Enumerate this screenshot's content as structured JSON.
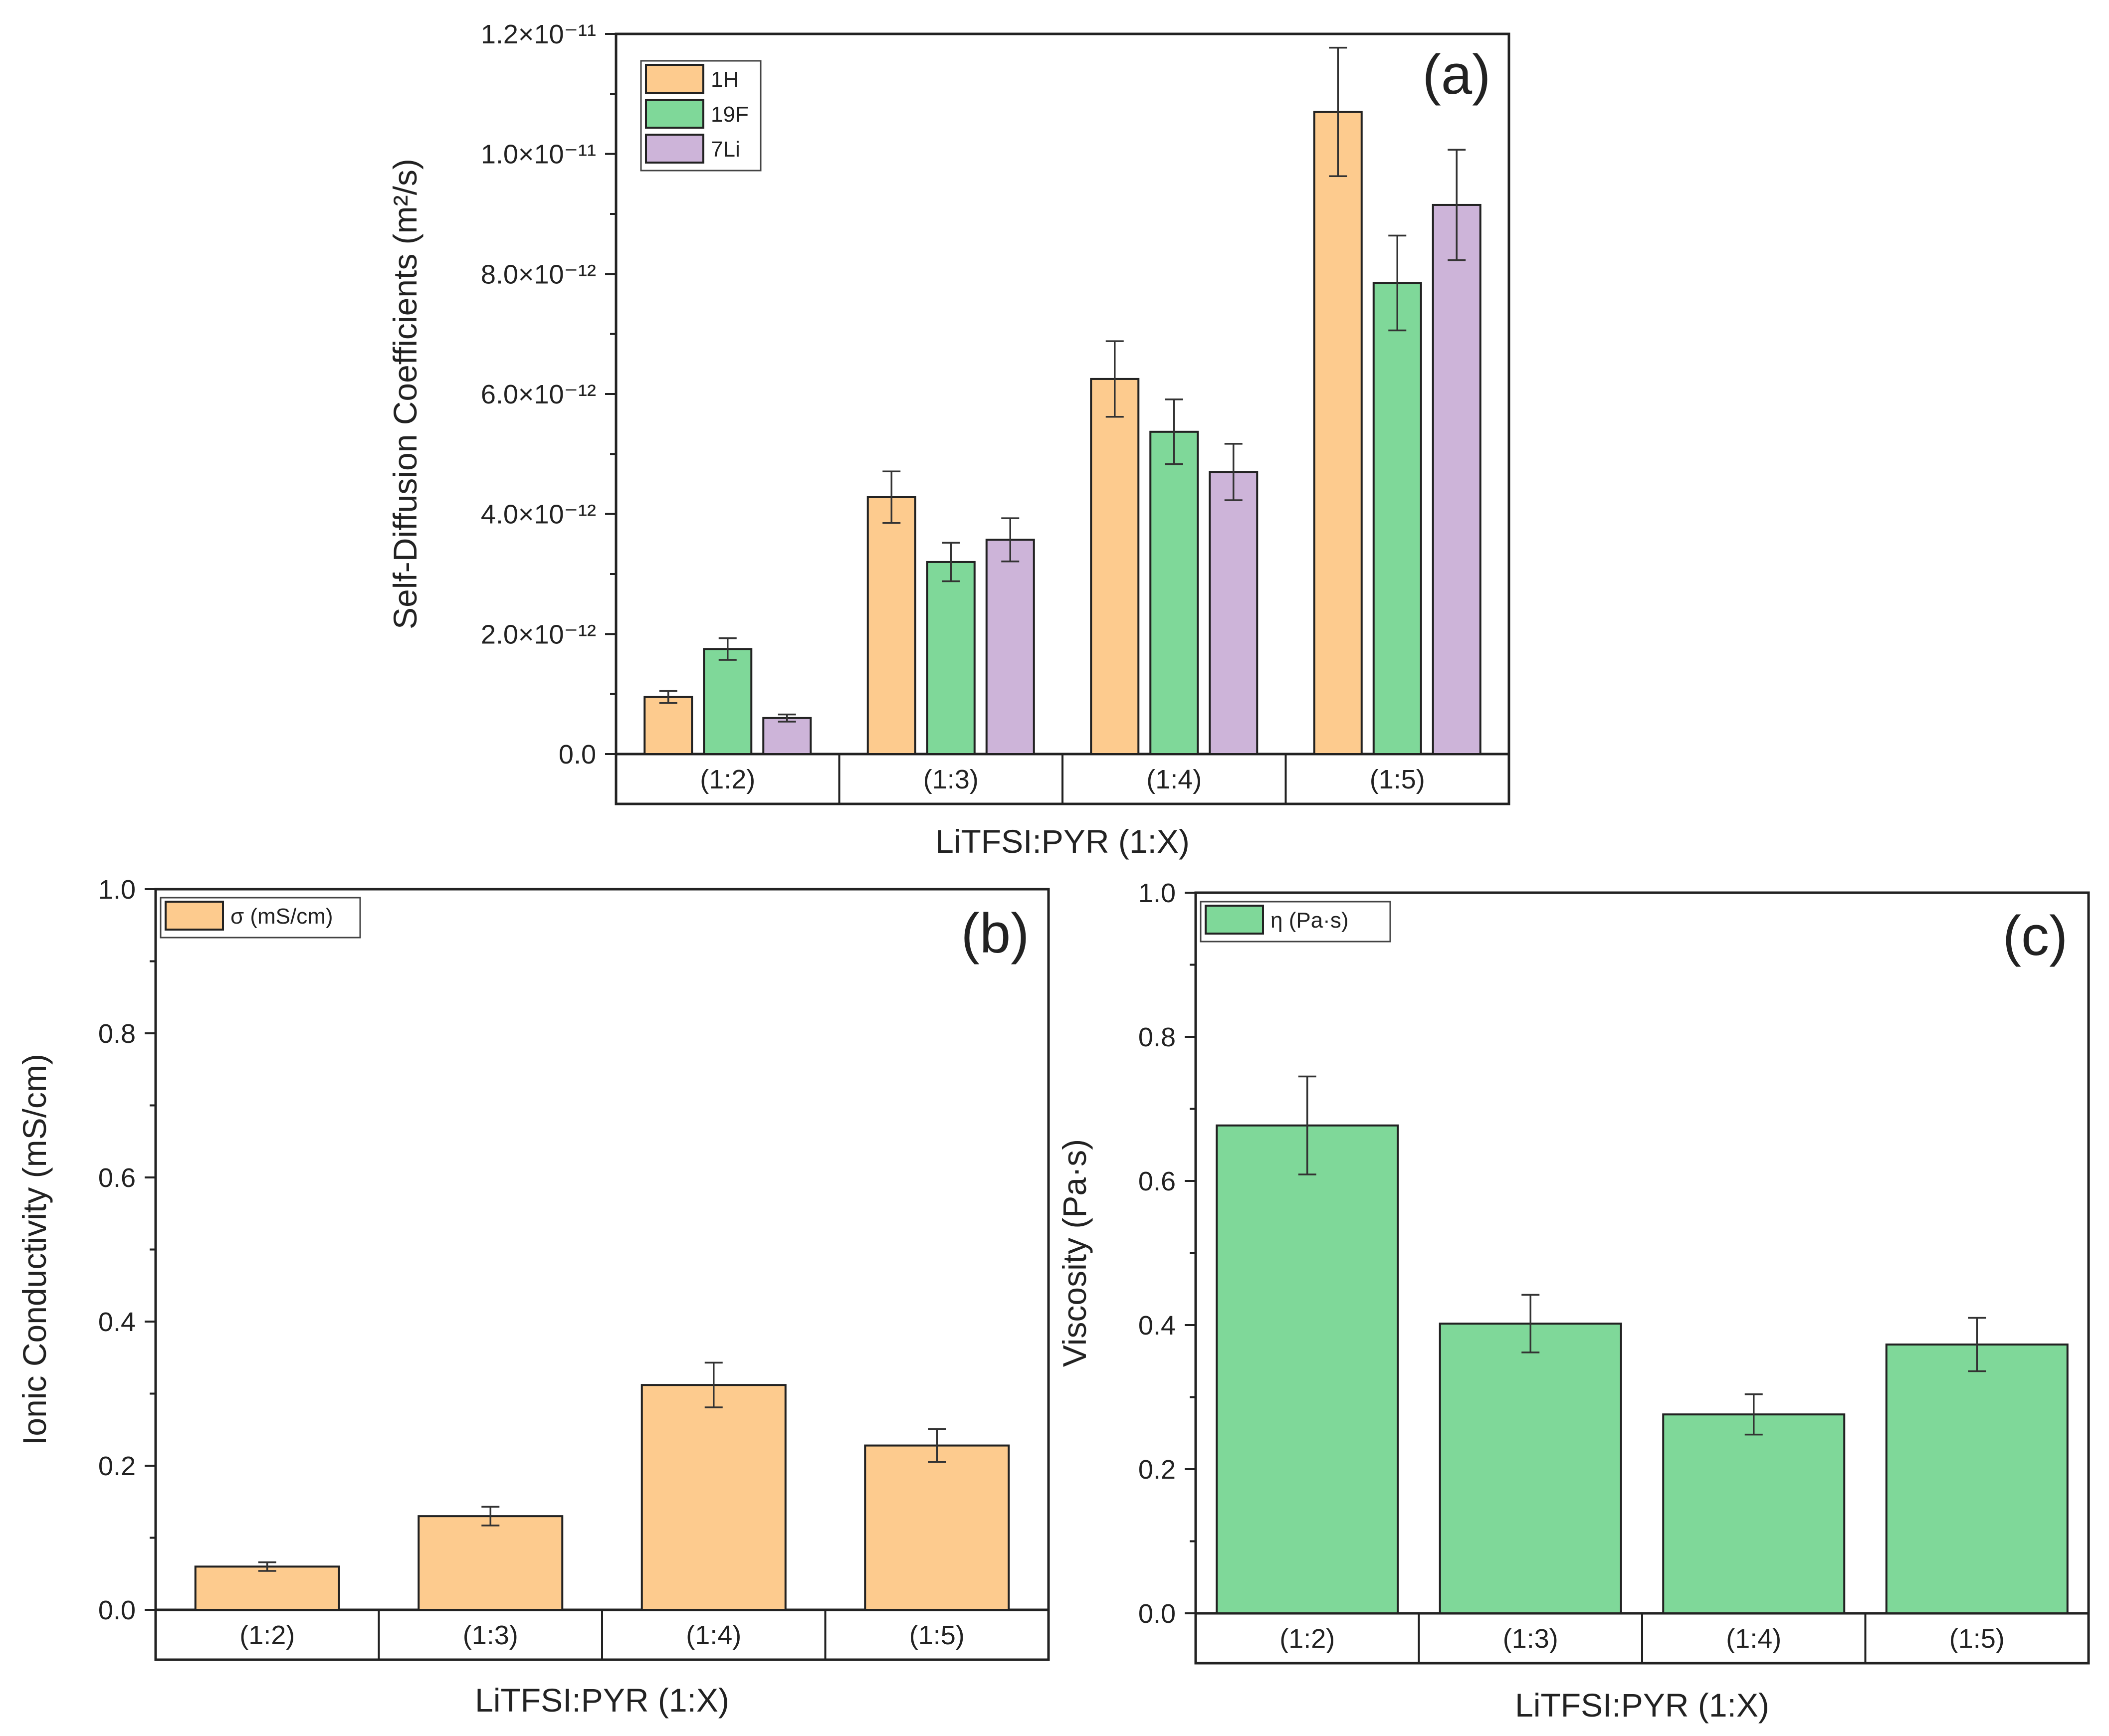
{
  "chart_data": [
    {
      "id": "a",
      "type": "bar",
      "panel_tag": "(a)",
      "title": "",
      "xlabel": "LiTFSI:PYR (1:X)",
      "ylabel": "Self-Diffusion Coefficients (m²/s)",
      "ylim": [
        0,
        1.2e-11
      ],
      "yticks": [
        {
          "value": 0,
          "label": "0.0"
        },
        {
          "value": 2e-12,
          "label": "2.0×10⁻¹²"
        },
        {
          "value": 4e-12,
          "label": "4.0×10⁻¹²"
        },
        {
          "value": 6e-12,
          "label": "6.0×10⁻¹²"
        },
        {
          "value": 8e-12,
          "label": "8.0×10⁻¹²"
        },
        {
          "value": 1e-11,
          "label": "1.0×10⁻¹¹"
        },
        {
          "value": 1.2e-11,
          "label": "1.2×10⁻¹¹"
        }
      ],
      "categories": [
        "(1:2)",
        "(1:3)",
        "(1:4)",
        "(1:5)"
      ],
      "legend_position": "top-left",
      "series": [
        {
          "name": "1H",
          "color": "#FDCB8E",
          "values": [
            9.5e-13,
            4.28e-12,
            6.25e-12,
            1.07e-11
          ],
          "errors": [
            1e-13,
            4.3e-13,
            6.3e-13,
            1.07e-12
          ]
        },
        {
          "name": "19F",
          "color": "#7FD899",
          "values": [
            1.75e-12,
            3.2e-12,
            5.37e-12,
            7.85e-12
          ],
          "errors": [
            1.8e-13,
            3.2e-13,
            5.4e-13,
            7.9e-13
          ]
        },
        {
          "name": "7Li",
          "color": "#CDB4D9",
          "values": [
            6e-13,
            3.57e-12,
            4.7e-12,
            9.15e-12
          ],
          "errors": [
            6e-14,
            3.6e-13,
            4.7e-13,
            9.2e-13
          ]
        }
      ]
    },
    {
      "id": "b",
      "type": "bar",
      "panel_tag": "(b)",
      "title": "",
      "xlabel": "LiTFSI:PYR (1:X)",
      "ylabel": "Ionic Conductivity (mS/cm)",
      "ylim": [
        0,
        1.0
      ],
      "yticks": [
        {
          "value": 0,
          "label": "0.0"
        },
        {
          "value": 0.2,
          "label": "0.2"
        },
        {
          "value": 0.4,
          "label": "0.4"
        },
        {
          "value": 0.6,
          "label": "0.6"
        },
        {
          "value": 0.8,
          "label": "0.8"
        },
        {
          "value": 1.0,
          "label": "1.0"
        }
      ],
      "categories": [
        "(1:2)",
        "(1:3)",
        "(1:4)",
        "(1:5)"
      ],
      "legend_position": "top-left",
      "series": [
        {
          "name": "σ (mS/cm)",
          "color": "#FDCB8E",
          "values": [
            0.06,
            0.13,
            0.312,
            0.228
          ],
          "errors": [
            0.006,
            0.013,
            0.031,
            0.023
          ]
        }
      ]
    },
    {
      "id": "c",
      "type": "bar",
      "panel_tag": "(c)",
      "title": "",
      "xlabel": "LiTFSI:PYR (1:X)",
      "ylabel": "Viscosity (Pa·s)",
      "ylim": [
        0,
        1.0
      ],
      "yticks": [
        {
          "value": 0,
          "label": "0.0"
        },
        {
          "value": 0.2,
          "label": "0.2"
        },
        {
          "value": 0.4,
          "label": "0.4"
        },
        {
          "value": 0.6,
          "label": "0.6"
        },
        {
          "value": 0.8,
          "label": "0.8"
        },
        {
          "value": 1.0,
          "label": "1.0"
        }
      ],
      "categories": [
        "(1:2)",
        "(1:3)",
        "(1:4)",
        "(1:5)"
      ],
      "legend_position": "top-left",
      "series": [
        {
          "name": "η (Pa·s)",
          "color": "#7FD899",
          "values": [
            0.677,
            0.402,
            0.276,
            0.373
          ],
          "errors": [
            0.068,
            0.04,
            0.028,
            0.037
          ]
        }
      ]
    }
  ]
}
